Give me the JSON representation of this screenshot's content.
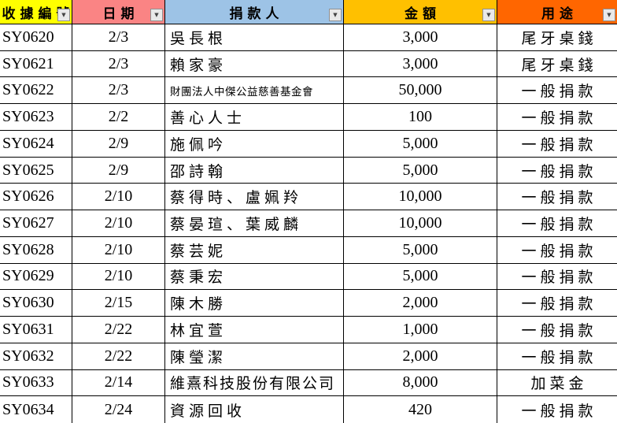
{
  "table": {
    "columns": [
      {
        "id": "receipt_no",
        "label": "收據編號",
        "bg": "#FFFF00"
      },
      {
        "id": "date",
        "label": "日期",
        "bg": "#FA8484"
      },
      {
        "id": "donor",
        "label": "捐款人",
        "bg": "#9DC3E6"
      },
      {
        "id": "amount",
        "label": "金額",
        "bg": "#FFC000"
      },
      {
        "id": "purpose",
        "label": "用途",
        "bg": "#FF6600"
      }
    ],
    "filter_icon": "▼",
    "rows": [
      {
        "receipt_no": "SY0620",
        "date": "2/3",
        "donor": "吳長根",
        "amount": "3,000",
        "purpose": "尾牙桌錢"
      },
      {
        "receipt_no": "SY0621",
        "date": "2/3",
        "donor": "賴家豪",
        "amount": "3,000",
        "purpose": "尾牙桌錢"
      },
      {
        "receipt_no": "SY0622",
        "date": "2/3",
        "donor": "財團法人中傑公益慈善基金會",
        "amount": "50,000",
        "purpose": "一般捐款"
      },
      {
        "receipt_no": "SY0623",
        "date": "2/2",
        "donor": "善心人士",
        "amount": "100",
        "purpose": "一般捐款"
      },
      {
        "receipt_no": "SY0624",
        "date": "2/9",
        "donor": "施佩吟",
        "amount": "5,000",
        "purpose": "一般捐款"
      },
      {
        "receipt_no": "SY0625",
        "date": "2/9",
        "donor": "邵詩翰",
        "amount": "5,000",
        "purpose": "一般捐款"
      },
      {
        "receipt_no": "SY0626",
        "date": "2/10",
        "donor": "蔡得時、盧姵羚",
        "amount": "10,000",
        "purpose": "一般捐款"
      },
      {
        "receipt_no": "SY0627",
        "date": "2/10",
        "donor": "蔡晏瑄、葉威麟",
        "amount": "10,000",
        "purpose": "一般捐款"
      },
      {
        "receipt_no": "SY0628",
        "date": "2/10",
        "donor": "蔡芸妮",
        "amount": "5,000",
        "purpose": "一般捐款"
      },
      {
        "receipt_no": "SY0629",
        "date": "2/10",
        "donor": "蔡秉宏",
        "amount": "5,000",
        "purpose": "一般捐款"
      },
      {
        "receipt_no": "SY0630",
        "date": "2/15",
        "donor": "陳木勝",
        "amount": "2,000",
        "purpose": "一般捐款"
      },
      {
        "receipt_no": "SY0631",
        "date": "2/22",
        "donor": "林宜萱",
        "amount": "1,000",
        "purpose": "一般捐款"
      },
      {
        "receipt_no": "SY0632",
        "date": "2/22",
        "donor": "陳瑩潔",
        "amount": "2,000",
        "purpose": "一般捐款"
      },
      {
        "receipt_no": "SY0633",
        "date": "2/14",
        "donor": "維熹科技股份有限公司",
        "amount": "8,000",
        "purpose": "加菜金"
      },
      {
        "receipt_no": "SY0634",
        "date": "2/24",
        "donor": "資源回收",
        "amount": "420",
        "purpose": "一般捐款"
      }
    ]
  }
}
